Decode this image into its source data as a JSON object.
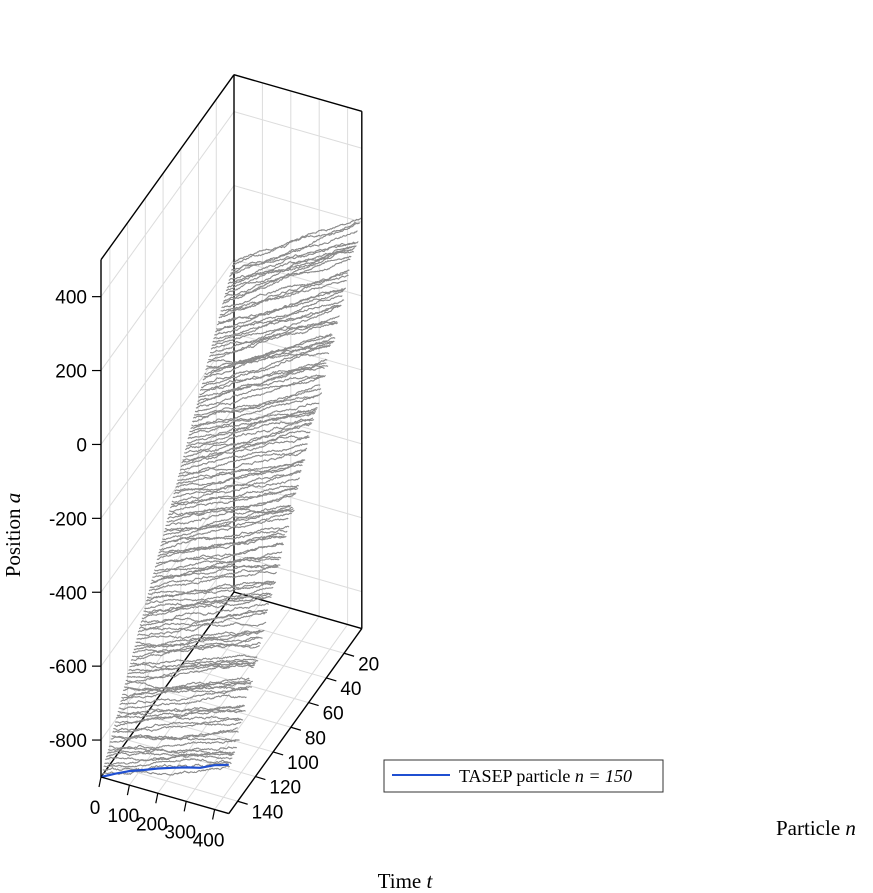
{
  "chart_data": {
    "type": "line",
    "projection": "3d",
    "title": "",
    "xlabel": {
      "text": "Time",
      "var": "t"
    },
    "ylabel": {
      "text": "Particle",
      "var": "n"
    },
    "zlabel": {
      "text": "Position",
      "var": "a"
    },
    "xlim": [
      0,
      450
    ],
    "ylim": [
      0,
      150
    ],
    "zlim": [
      -900,
      500
    ],
    "x_ticks": [
      0,
      100,
      200,
      300,
      400
    ],
    "y_ticks": [
      20,
      40,
      60,
      80,
      100,
      120,
      140
    ],
    "z_ticks": [
      400,
      200,
      0,
      -200,
      -400,
      -600,
      -800
    ],
    "grid": true,
    "legend_position": "bottom-right",
    "background_series": {
      "color": "#8a8a8a",
      "particles_from": 1,
      "particles_to": 149,
      "initial_position_formula": "-900 + 6*(150-n)",
      "mean_speed_formula": "0.25 + 0.0015*(150-n)"
    },
    "highlighted_series": {
      "name": "TASEP particle n = 150",
      "legend_text": "TASEP particle",
      "legend_math": "n = 150",
      "color": "#1f4fd1",
      "particle": 150,
      "t": [
        0,
        50,
        100,
        150,
        200,
        250,
        300,
        350,
        400,
        450
      ],
      "a": [
        -900,
        -880,
        -862,
        -848,
        -833,
        -820,
        -808,
        -798,
        -780,
        -768
      ]
    }
  }
}
